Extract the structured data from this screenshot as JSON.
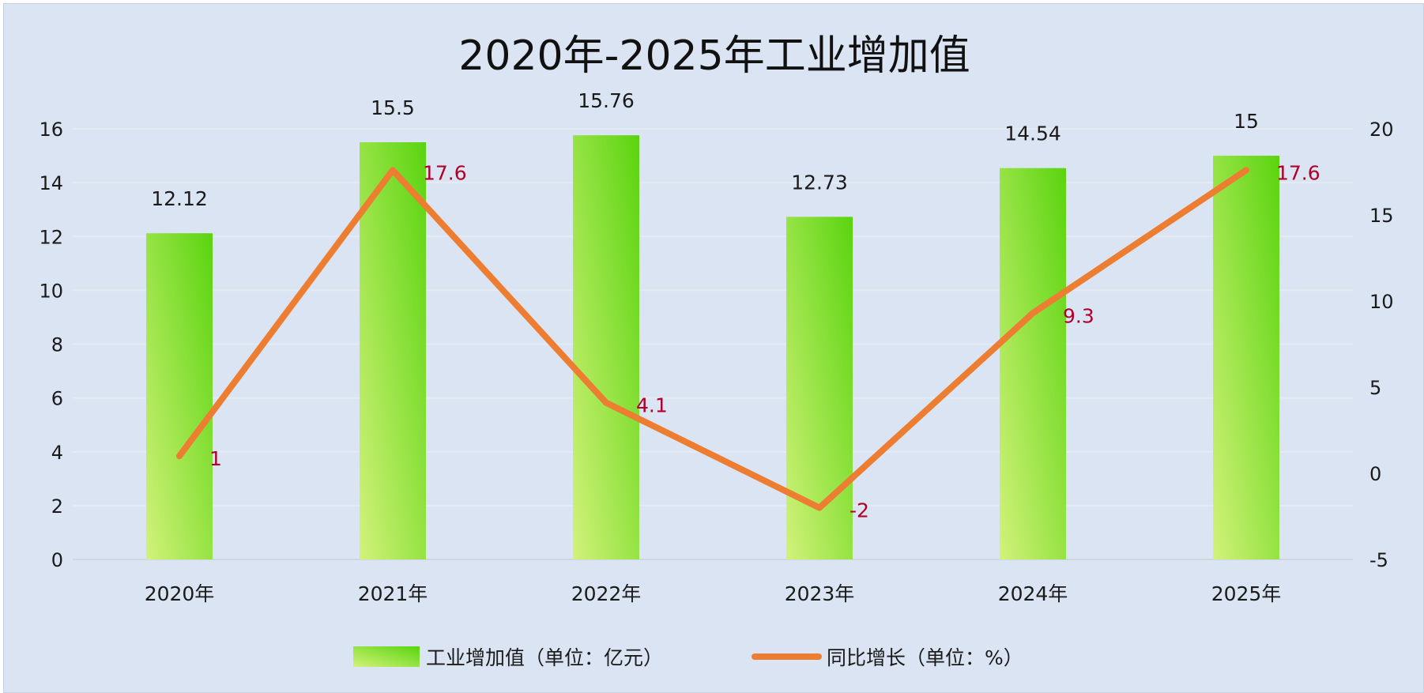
{
  "chart_data": {
    "type": "bar",
    "title": "2020年-2025年工业增加值",
    "categories": [
      "2020年",
      "2021年",
      "2022年",
      "2023年",
      "2024年",
      "2025年"
    ],
    "series": [
      {
        "name": "工业增加值（单位：亿元）",
        "type": "bar",
        "axis": "left",
        "values": [
          12.12,
          15.5,
          15.76,
          12.73,
          14.54,
          15
        ],
        "labels": [
          "12.12",
          "15.5",
          "15.76",
          "12.73",
          "14.54",
          "15"
        ],
        "color": "#5ad40f",
        "color_light": "#d2f27a"
      },
      {
        "name": "同比增长（单位：%）",
        "type": "line",
        "axis": "right",
        "values": [
          1,
          17.6,
          4.1,
          -2,
          9.3,
          17.6
        ],
        "labels": [
          "1",
          "17.6",
          "4.1",
          "-2",
          "9.3",
          "17.6"
        ],
        "color": "#ed7d31"
      }
    ],
    "y_left": {
      "min": 0,
      "max": 16,
      "ticks": [
        "0",
        "2",
        "4",
        "6",
        "8",
        "10",
        "12",
        "14",
        "16"
      ]
    },
    "y_right": {
      "min": -5,
      "max": 20,
      "ticks": [
        "-5",
        "0",
        "5",
        "10",
        "15",
        "20"
      ]
    },
    "grid": true,
    "legend_position": "bottom",
    "background": "#dbe4f2",
    "line_label_color": "#b0002a"
  }
}
